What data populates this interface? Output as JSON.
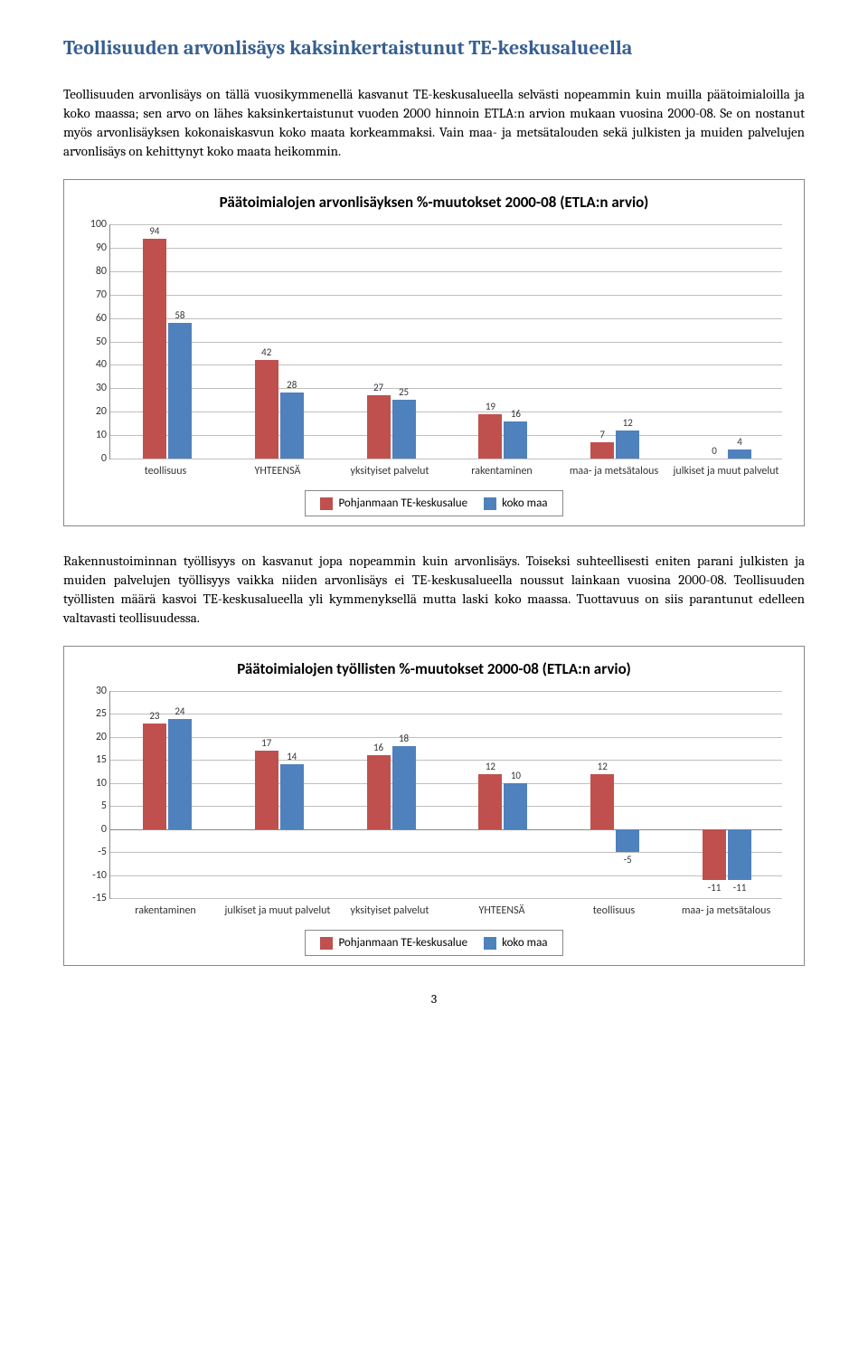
{
  "heading": "Teollisuuden arvonlisäys kaksinkertaistunut TE-keskusalueella",
  "para1": "Teollisuuden arvonlisäys on tällä vuosikymmenellä kasvanut TE-keskusalueella selvästi nopeammin kuin muilla päätoimialoilla ja koko maassa; sen arvo on lähes kaksinkertaistunut vuoden 2000 hinnoin ETLA:n arvion mukaan vuosina 2000-08. Se on nostanut myös arvonlisäyksen kokonaiskasvun koko maata korkeammaksi. Vain maa- ja metsätalouden sekä julkisten ja muiden palvelujen arvonlisäys on kehittynyt koko maata heikommin.",
  "para2": "Rakennustoiminnan työllisyys on kasvanut jopa nopeammin kuin arvonlisäys. Toiseksi suhteellisesti eniten parani julkisten ja muiden palvelujen työllisyys vaikka niiden arvonlisäys ei TE-keskusalueella noussut lainkaan vuosina 2000-08. Teollisuuden työllisten määrä kasvoi TE-keskusalueella yli kymmenyksellä mutta laski koko maassa. Tuottavuus on siis parantunut edelleen valtavasti teollisuudessa.",
  "page_number": "3",
  "colors": {
    "series1": "#c0504d",
    "series2": "#4f81bd",
    "grid": "#bfbfbf",
    "axis": "#888888"
  },
  "legend": {
    "s1": "Pohjanmaan TE-keskusalue",
    "s2": "koko maa"
  },
  "chart1": {
    "title": "Päätoimialojen arvonlisäyksen %-muutokset 2000-08 (ETLA:n arvio)",
    "categories": [
      "teollisuus",
      "YHTEENSÄ",
      "yksityiset palvelut",
      "rakentaminen",
      "maa- ja metsätalous",
      "julkiset ja muut palvelut"
    ],
    "series1": [
      94,
      42,
      27,
      19,
      7,
      0
    ],
    "series2": [
      58,
      28,
      25,
      16,
      12,
      4
    ],
    "ymin": 0,
    "ymax": 100,
    "ystep": 10
  },
  "chart2": {
    "title": "Päätoimialojen työllisten %-muutokset 2000-08 (ETLA:n arvio)",
    "categories": [
      "rakentaminen",
      "julkiset ja muut palvelut",
      "yksityiset palvelut",
      "YHTEENSÄ",
      "teollisuus",
      "maa- ja metsätalous"
    ],
    "series1": [
      23,
      17,
      16,
      12,
      12,
      -11
    ],
    "series2": [
      24,
      14,
      18,
      10,
      -5,
      -11
    ],
    "ymin": -15,
    "ymax": 30,
    "ystep": 5
  }
}
